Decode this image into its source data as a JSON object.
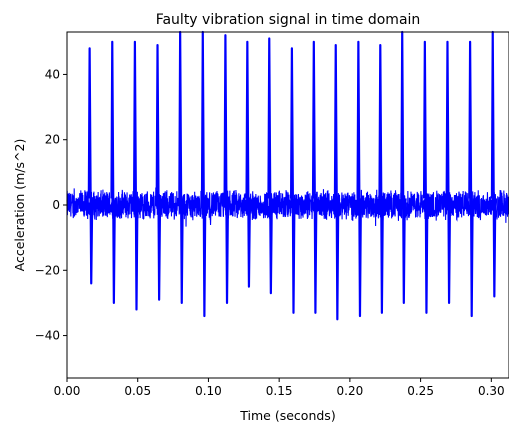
{
  "chart_data": {
    "type": "line",
    "title": "Faulty vibration signal in time domain",
    "xlabel": "Time (seconds)",
    "ylabel": "Acceleration (m/s^2)",
    "xlim": [
      0.0,
      0.3125
    ],
    "ylim": [
      -53,
      53
    ],
    "x_ticks": [
      "0.00",
      "0.05",
      "0.10",
      "0.15",
      "0.20",
      "0.25",
      "0.30"
    ],
    "x_tick_values": [
      0.0,
      0.05,
      0.1,
      0.15,
      0.2,
      0.25,
      0.3
    ],
    "y_ticks": [
      "−40",
      "−20",
      "0",
      "20",
      "40"
    ],
    "y_tick_values": [
      -40,
      -20,
      0,
      20,
      40
    ],
    "grid": false,
    "legend": "none",
    "line_color": "#0000ff",
    "noise_amplitude": 5,
    "impulses": [
      {
        "t": 0.016,
        "peak": 48,
        "trough": -24
      },
      {
        "t": 0.032,
        "peak": 50,
        "trough": -30
      },
      {
        "t": 0.048,
        "peak": 50,
        "trough": -32
      },
      {
        "t": 0.064,
        "peak": 49,
        "trough": -29
      },
      {
        "t": 0.08,
        "peak": 53,
        "trough": -30
      },
      {
        "t": 0.096,
        "peak": 53,
        "trough": -34
      },
      {
        "t": 0.112,
        "peak": 52,
        "trough": -30
      },
      {
        "t": 0.1275,
        "peak": 50,
        "trough": -25
      },
      {
        "t": 0.143,
        "peak": 51,
        "trough": -27
      },
      {
        "t": 0.159,
        "peak": 48,
        "trough": -33
      },
      {
        "t": 0.1745,
        "peak": 50,
        "trough": -33
      },
      {
        "t": 0.19,
        "peak": 49,
        "trough": -35
      },
      {
        "t": 0.206,
        "peak": 50,
        "trough": -34
      },
      {
        "t": 0.2215,
        "peak": 49,
        "trough": -33
      },
      {
        "t": 0.237,
        "peak": 53,
        "trough": -30
      },
      {
        "t": 0.253,
        "peak": 50,
        "trough": -33
      },
      {
        "t": 0.269,
        "peak": 50,
        "trough": -30
      },
      {
        "t": 0.285,
        "peak": 50,
        "trough": -34
      },
      {
        "t": 0.301,
        "peak": 53,
        "trough": -28
      }
    ]
  }
}
